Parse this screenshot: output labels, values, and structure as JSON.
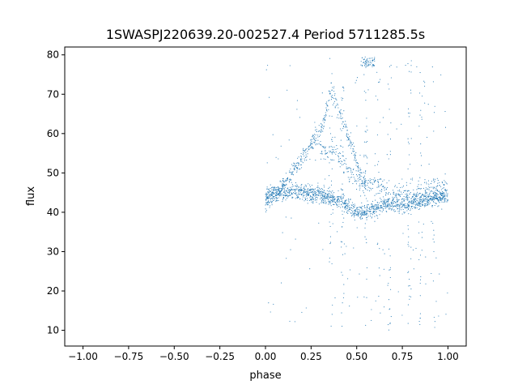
{
  "colors": {
    "points": "#1f77b4",
    "axes": "#000000",
    "background": "#ffffff"
  },
  "chart_data": {
    "type": "scatter",
    "title": "1SWASPJ220639.20-002527.4 Period 5711285.5s",
    "xlabel": "phase",
    "ylabel": "flux",
    "xlim": [
      -1.1,
      1.1
    ],
    "ylim": [
      6,
      82
    ],
    "grid": false,
    "legend": "none",
    "x_ticks": [
      -1.0,
      -0.75,
      -0.5,
      -0.25,
      0.0,
      0.25,
      0.5,
      0.75,
      1.0
    ],
    "x_tick_labels": [
      "−1.00",
      "−0.75",
      "−0.50",
      "−0.25",
      "0.00",
      "0.25",
      "0.50",
      "0.75",
      "1.00"
    ],
    "y_ticks": [
      10,
      20,
      30,
      40,
      50,
      60,
      70,
      80
    ],
    "y_tick_labels": [
      "10",
      "20",
      "30",
      "40",
      "50",
      "60",
      "70",
      "80"
    ],
    "phased_folded": true,
    "series": [
      {
        "name": "",
        "phase_ranges_repeat": true,
        "trend_baseline": [
          [
            0.0,
            44
          ],
          [
            0.05,
            45
          ],
          [
            0.1,
            45
          ],
          [
            0.2,
            45
          ],
          [
            0.3,
            44.5
          ],
          [
            0.4,
            43
          ],
          [
            0.5,
            40
          ],
          [
            0.55,
            40
          ],
          [
            0.65,
            42
          ],
          [
            0.75,
            42
          ],
          [
            0.85,
            43
          ],
          [
            0.95,
            44
          ],
          [
            1.0,
            44
          ]
        ],
        "trend_upper_branch": [
          [
            0.0,
            42
          ],
          [
            0.05,
            44
          ],
          [
            0.1,
            47
          ],
          [
            0.15,
            50
          ],
          [
            0.2,
            54
          ],
          [
            0.25,
            57
          ],
          [
            0.3,
            60
          ],
          [
            0.33,
            65
          ],
          [
            0.36,
            72
          ],
          [
            0.38,
            68
          ],
          [
            0.45,
            60
          ],
          [
            0.52,
            50
          ],
          [
            0.55,
            47
          ]
        ],
        "trend_mid_branch": [
          [
            0.3,
            56
          ],
          [
            0.4,
            54
          ],
          [
            0.5,
            48
          ],
          [
            0.6,
            47
          ],
          [
            0.7,
            45
          ],
          [
            0.8,
            45
          ],
          [
            0.9,
            46
          ],
          [
            1.0,
            47
          ]
        ],
        "clump_near_top": [
          [
            0.53,
            79
          ],
          [
            0.55,
            79
          ],
          [
            0.57,
            79
          ],
          [
            0.59,
            78
          ]
        ]
      }
    ]
  }
}
